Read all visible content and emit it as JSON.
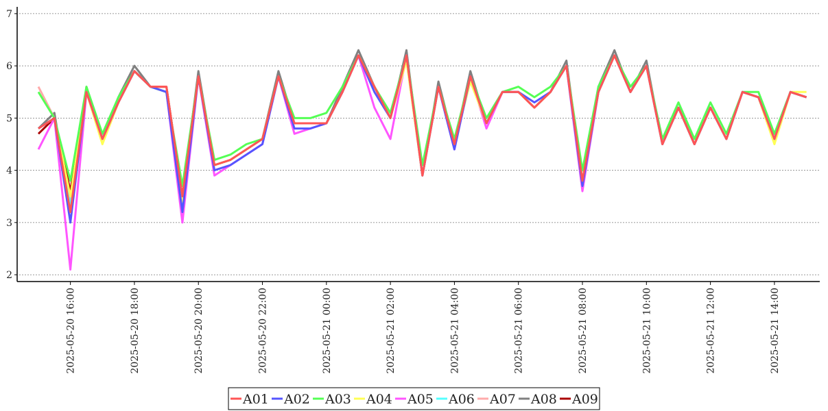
{
  "chart_data": {
    "type": "line",
    "x": [
      "2025-05-20 15:00",
      "2025-05-20 15:30",
      "2025-05-20 16:00",
      "2025-05-20 16:30",
      "2025-05-20 17:00",
      "2025-05-20 17:30",
      "2025-05-20 18:00",
      "2025-05-20 18:30",
      "2025-05-20 19:00",
      "2025-05-20 19:30",
      "2025-05-20 20:00",
      "2025-05-20 20:30",
      "2025-05-20 21:00",
      "2025-05-20 21:30",
      "2025-05-20 22:00",
      "2025-05-20 22:30",
      "2025-05-20 23:00",
      "2025-05-20 23:30",
      "2025-05-21 00:00",
      "2025-05-21 00:30",
      "2025-05-21 01:00",
      "2025-05-21 01:30",
      "2025-05-21 02:00",
      "2025-05-21 02:30",
      "2025-05-21 03:00",
      "2025-05-21 03:30",
      "2025-05-21 04:00",
      "2025-05-21 04:30",
      "2025-05-21 05:00",
      "2025-05-21 05:30",
      "2025-05-21 06:00",
      "2025-05-21 06:30",
      "2025-05-21 07:00",
      "2025-05-21 07:30",
      "2025-05-21 08:00",
      "2025-05-21 08:30",
      "2025-05-21 09:00",
      "2025-05-21 09:30",
      "2025-05-21 10:00",
      "2025-05-21 10:30",
      "2025-05-21 11:00",
      "2025-05-21 11:30",
      "2025-05-21 12:00",
      "2025-05-21 12:30",
      "2025-05-21 13:00",
      "2025-05-21 13:30",
      "2025-05-21 14:00",
      "2025-05-21 14:30",
      "2025-05-21 15:00"
    ],
    "series": [
      {
        "name": "A01",
        "color": "#ff5555",
        "values": [
          4.8,
          5.0,
          3.2,
          5.5,
          4.6,
          5.3,
          5.9,
          5.6,
          5.6,
          3.5,
          5.8,
          4.1,
          4.2,
          4.4,
          4.6,
          5.8,
          4.9,
          4.9,
          4.9,
          5.5,
          6.2,
          5.6,
          5.0,
          6.2,
          3.9,
          5.6,
          4.5,
          5.8,
          4.9,
          5.5,
          5.5,
          5.2,
          5.5,
          6.0,
          3.8,
          5.5,
          6.2,
          5.5,
          6.0,
          4.5,
          5.2,
          4.5,
          5.2,
          4.6,
          5.5,
          5.4,
          4.6,
          5.5,
          5.4
        ]
      },
      {
        "name": "A02",
        "color": "#5555ff",
        "values": [
          4.8,
          5.0,
          3.0,
          5.5,
          4.6,
          5.3,
          5.9,
          5.6,
          5.5,
          3.2,
          5.8,
          4.0,
          4.1,
          4.3,
          4.5,
          5.8,
          4.8,
          4.8,
          4.9,
          5.5,
          6.2,
          5.5,
          5.0,
          6.2,
          3.9,
          5.6,
          4.4,
          5.8,
          4.9,
          5.5,
          5.5,
          5.3,
          5.5,
          6.0,
          3.7,
          5.5,
          6.2,
          5.5,
          6.0,
          4.5,
          5.2,
          4.5,
          5.2,
          4.6,
          5.5,
          5.4,
          4.6,
          5.5,
          5.4
        ]
      },
      {
        "name": "A03",
        "color": "#55ff55",
        "values": [
          5.5,
          5.0,
          3.8,
          5.6,
          4.7,
          5.4,
          5.9,
          5.6,
          5.5,
          3.7,
          5.8,
          4.2,
          4.3,
          4.5,
          4.6,
          5.8,
          5.0,
          5.0,
          5.1,
          5.6,
          6.2,
          5.6,
          5.1,
          6.2,
          4.1,
          5.6,
          4.6,
          5.8,
          5.0,
          5.5,
          5.6,
          5.4,
          5.6,
          6.0,
          4.0,
          5.6,
          6.2,
          5.6,
          6.0,
          4.6,
          5.3,
          4.6,
          5.3,
          4.7,
          5.5,
          5.5,
          4.7,
          5.5,
          5.4
        ]
      },
      {
        "name": "A04",
        "color": "#ffff55",
        "values": [
          4.8,
          5.0,
          3.5,
          5.5,
          4.5,
          5.3,
          5.9,
          5.6,
          5.5,
          3.4,
          5.8,
          4.1,
          4.2,
          4.4,
          4.6,
          5.8,
          4.9,
          4.9,
          4.9,
          5.5,
          6.2,
          5.6,
          5.0,
          6.1,
          3.9,
          5.6,
          4.5,
          5.7,
          4.9,
          5.5,
          5.5,
          5.2,
          5.5,
          6.0,
          3.8,
          5.5,
          6.2,
          5.5,
          6.0,
          4.5,
          5.2,
          4.5,
          5.2,
          4.6,
          5.5,
          5.4,
          4.5,
          5.5,
          5.5
        ]
      },
      {
        "name": "A05",
        "color": "#ff55ff",
        "values": [
          4.4,
          5.0,
          2.1,
          5.5,
          4.6,
          5.3,
          5.9,
          5.6,
          5.5,
          3.0,
          5.8,
          3.9,
          4.1,
          4.3,
          4.5,
          5.8,
          4.7,
          4.8,
          4.9,
          5.5,
          6.2,
          5.2,
          4.6,
          6.2,
          3.9,
          5.6,
          4.4,
          5.8,
          4.8,
          5.5,
          5.5,
          5.2,
          5.5,
          6.0,
          3.6,
          5.5,
          6.2,
          5.5,
          6.0,
          4.5,
          5.2,
          4.5,
          5.2,
          4.6,
          5.5,
          5.4,
          4.6,
          5.5,
          5.4
        ]
      },
      {
        "name": "A06",
        "color": "#55ffff",
        "values": [
          4.8,
          5.0,
          3.3,
          5.5,
          4.6,
          5.3,
          5.9,
          5.6,
          5.5,
          3.3,
          5.8,
          4.1,
          4.2,
          4.4,
          4.6,
          5.8,
          4.9,
          4.9,
          4.9,
          5.5,
          6.2,
          5.6,
          5.0,
          6.2,
          3.9,
          5.6,
          4.5,
          5.8,
          4.9,
          5.5,
          5.5,
          5.2,
          5.5,
          6.0,
          3.8,
          5.5,
          6.2,
          5.5,
          6.0,
          4.5,
          5.2,
          4.5,
          5.2,
          4.6,
          5.5,
          5.4,
          4.6,
          5.5,
          5.4
        ]
      },
      {
        "name": "A07",
        "color": "#ffaaaa",
        "values": [
          5.6,
          5.0,
          3.4,
          5.5,
          4.6,
          5.3,
          5.9,
          5.6,
          5.6,
          3.4,
          5.8,
          4.1,
          4.2,
          4.4,
          4.6,
          5.8,
          4.9,
          4.9,
          4.9,
          5.5,
          6.2,
          5.6,
          5.0,
          6.2,
          3.9,
          5.6,
          4.5,
          5.8,
          4.9,
          5.5,
          5.5,
          5.2,
          5.5,
          6.0,
          3.8,
          5.5,
          6.2,
          5.5,
          6.0,
          4.5,
          5.2,
          4.5,
          5.2,
          4.6,
          5.5,
          5.4,
          4.6,
          5.5,
          5.4
        ]
      },
      {
        "name": "A08",
        "color": "#808080",
        "values": [
          4.8,
          5.1,
          3.3,
          5.6,
          4.6,
          5.4,
          6.0,
          5.6,
          5.6,
          3.5,
          5.9,
          4.1,
          4.2,
          4.4,
          4.6,
          5.9,
          4.9,
          4.9,
          4.9,
          5.6,
          6.3,
          5.6,
          5.0,
          6.3,
          3.9,
          5.7,
          4.5,
          5.9,
          4.9,
          5.5,
          5.5,
          5.2,
          5.5,
          6.1,
          3.8,
          5.6,
          6.3,
          5.5,
          6.1,
          4.5,
          5.2,
          4.5,
          5.2,
          4.6,
          5.5,
          5.4,
          4.6,
          5.5,
          5.4
        ]
      },
      {
        "name": "A09",
        "color": "#aa0000",
        "values": [
          4.7,
          5.0,
          3.6,
          5.5,
          4.6,
          5.3,
          5.9,
          5.6,
          5.6,
          3.5,
          5.8,
          4.1,
          4.2,
          4.4,
          4.6,
          5.8,
          4.9,
          4.9,
          4.9,
          5.5,
          6.2,
          5.6,
          5.0,
          6.2,
          3.9,
          5.6,
          4.5,
          5.8,
          4.9,
          5.5,
          5.5,
          5.2,
          5.5,
          6.0,
          3.8,
          5.5,
          6.2,
          5.5,
          6.0,
          4.5,
          5.2,
          4.5,
          5.2,
          4.6,
          5.5,
          5.4,
          4.6,
          5.5,
          5.4
        ]
      }
    ],
    "xlim": [
      "2025-05-20 14:24",
      "2025-05-21 15:25"
    ],
    "xticks": [
      "2025-05-20 16:00",
      "2025-05-20 18:00",
      "2025-05-20 20:00",
      "2025-05-20 22:00",
      "2025-05-21 00:00",
      "2025-05-21 02:00",
      "2025-05-21 04:00",
      "2025-05-21 06:00",
      "2025-05-21 08:00",
      "2025-05-21 10:00",
      "2025-05-21 12:00",
      "2025-05-21 14:00"
    ],
    "ylim": [
      1.87,
      7.13
    ],
    "yticks": [
      2,
      3,
      4,
      5,
      6,
      7
    ],
    "grid": true,
    "legend": "bottom"
  }
}
